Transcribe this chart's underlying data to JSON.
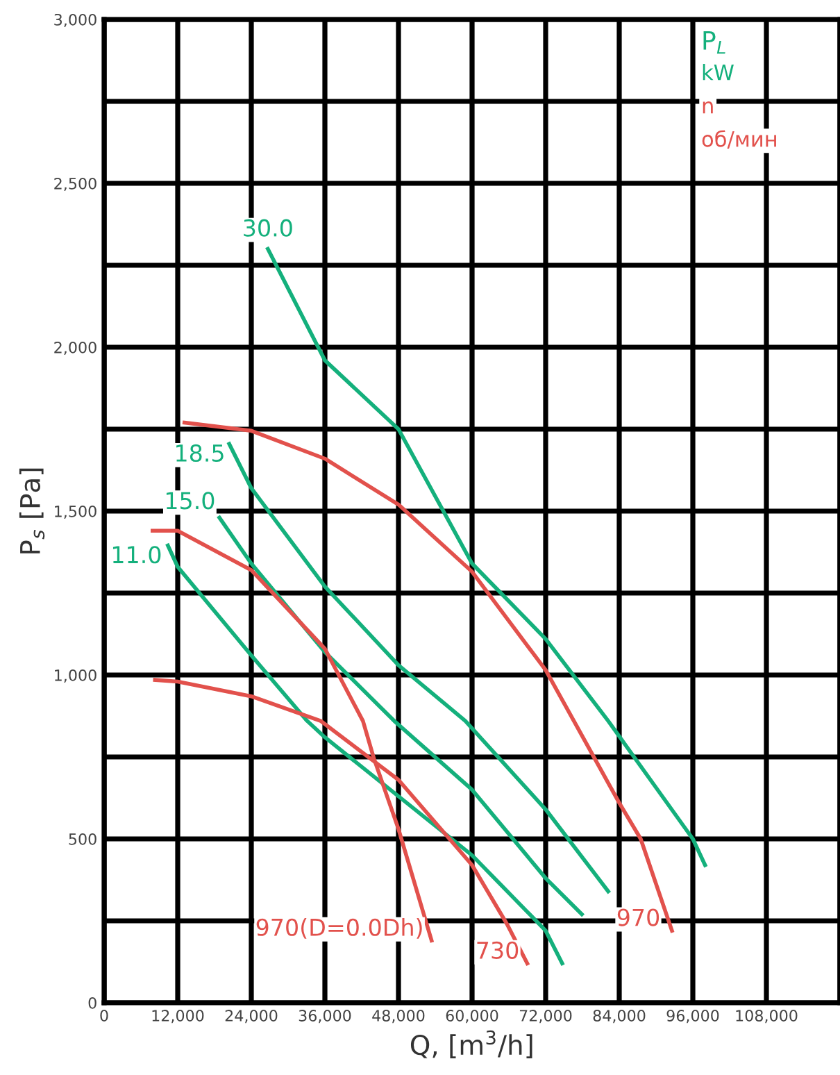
{
  "chart_data": {
    "type": "line",
    "xlabel": "Q, [m$^{3}$/h]",
    "ylabel": "P$_{s}$ [Pa]",
    "annotations": [
      "P$_{L}$",
      "kW",
      "n",
      "об/мин"
    ],
    "xlim": [
      0,
      120000
    ],
    "ylim": [
      0,
      3000
    ],
    "xticks": [
      0,
      {
        "value": 12000,
        "label": "12,000"
      },
      {
        "value": 24000,
        "label": "24,000"
      },
      {
        "value": 36000,
        "label": "36,000"
      },
      {
        "value": 48000,
        "label": "48,000"
      },
      {
        "value": 60000,
        "label": "60,000"
      },
      {
        "value": 72000,
        "label": "72,000"
      },
      {
        "value": 84000,
        "label": "84,000"
      },
      {
        "value": 96000,
        "label": "96,000"
      },
      {
        "value": 108000,
        "label": "108,000"
      },
      {
        "value": 120000,
        "label": null
      }
    ],
    "yticks": [
      0,
      {
        "value": 250,
        "label": null
      },
      500,
      {
        "value": 750,
        "label": null
      },
      {
        "value": 1000,
        "label": "1,000"
      },
      {
        "value": 1250,
        "label": null
      },
      {
        "value": 1500,
        "label": "1,500"
      },
      {
        "value": 1750,
        "label": null
      },
      {
        "value": 2000,
        "label": "2,000"
      },
      {
        "value": 2250,
        "label": null
      },
      {
        "value": 2500,
        "label": "2,500"
      },
      {
        "value": 2750,
        "label": null
      },
      {
        "value": 3000,
        "label": "3,000"
      }
    ],
    "grid": true,
    "legend": false,
    "marker": "none",
    "line_style": "solid",
    "series": [
      {
        "name": "30.0",
        "color": "#14b07c",
        "x": [
          26700,
          36000,
          48000,
          60000,
          72000,
          82200,
          96000,
          98000
        ],
        "values": [
          2300,
          1960,
          1750,
          1340,
          1110,
          860,
          500,
          420
        ]
      },
      {
        "name": "18.5",
        "color": "#14b07c",
        "x": [
          20400,
          24000,
          36000,
          48000,
          58900,
          72000,
          82200
        ],
        "values": [
          1705,
          1570,
          1270,
          1030,
          860,
          590,
          340
        ]
      },
      {
        "name": "15.0",
        "color": "#14b07c",
        "x": [
          18800,
          24000,
          36000,
          47300,
          60000,
          72000,
          77900
        ],
        "values": [
          1480,
          1340,
          1070,
          860,
          650,
          380,
          270
        ]
      },
      {
        "name": "11.0",
        "color": "#14b07c",
        "x": [
          10400,
          12000,
          24000,
          33100,
          36000,
          48000,
          60000,
          72000,
          74700
        ],
        "values": [
          1395,
          1330,
          1060,
          860,
          810,
          630,
          450,
          220,
          120
        ]
      },
      {
        "name": "970",
        "color": "#e2514c",
        "x": [
          13100,
          24000,
          36000,
          48000,
          60000,
          72000,
          76600,
          84000,
          87500,
          92600
        ],
        "values": [
          1770,
          1745,
          1660,
          1520,
          1315,
          1015,
          860,
          610,
          500,
          220
        ]
      },
      {
        "name": "730",
        "color": "#e2514c",
        "x": [
          8300,
          12000,
          24000,
          35300,
          48000,
          60000,
          65700,
          69000
        ],
        "values": [
          985,
          980,
          935,
          860,
          680,
          420,
          240,
          120
        ]
      },
      {
        "name": "970(D=0.0Dh)",
        "color": "#e2514c",
        "x": [
          7900,
          12000,
          24000,
          36000,
          42200,
          44000,
          48000,
          53400
        ],
        "values": [
          1440,
          1440,
          1320,
          1080,
          860,
          745,
          530,
          190
        ]
      }
    ]
  }
}
